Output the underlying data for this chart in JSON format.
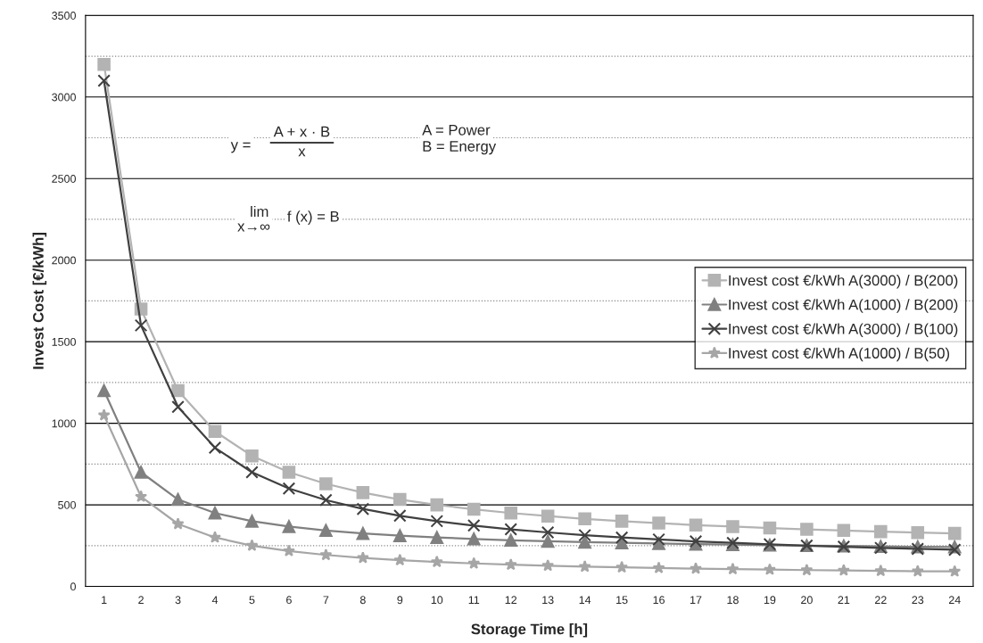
{
  "chart_data": {
    "type": "line",
    "xlabel": "Storage Time [h]",
    "ylabel": "Invest Cost [€/kWh]",
    "categories": [
      "1",
      "2",
      "3",
      "4",
      "5",
      "6",
      "7",
      "8",
      "9",
      "10",
      "11",
      "12",
      "13",
      "14",
      "15",
      "16",
      "17",
      "18",
      "19",
      "20",
      "21",
      "22",
      "23",
      "24"
    ],
    "series": [
      {
        "name": "Invest cost €/kWh A(3000) / B(200)",
        "color": "#b3b3b3",
        "marker": "square",
        "values": [
          3200,
          1700,
          1200,
          950,
          800,
          700,
          629,
          575,
          533,
          500,
          473,
          450,
          431,
          414,
          400,
          388,
          376,
          367,
          358,
          350,
          343,
          336,
          330,
          325
        ]
      },
      {
        "name": "Invest cost €/kWh A(1000) / B(200)",
        "color": "#808080",
        "marker": "triangle",
        "values": [
          1200,
          700,
          533,
          450,
          400,
          367,
          343,
          325,
          311,
          300,
          291,
          283,
          277,
          271,
          267,
          263,
          259,
          256,
          253,
          250,
          248,
          245,
          243,
          242
        ]
      },
      {
        "name": "Invest cost €/kWh A(3000) / B(100)",
        "color": "#404040",
        "marker": "cross",
        "values": [
          3100,
          1600,
          1100,
          850,
          700,
          600,
          529,
          475,
          433,
          400,
          373,
          350,
          331,
          314,
          300,
          288,
          276,
          267,
          258,
          250,
          243,
          236,
          230,
          225
        ]
      },
      {
        "name": "Invest cost €/kWh A(1000) / B(50)",
        "color": "#a6a6a6",
        "marker": "star",
        "values": [
          1050,
          550,
          383,
          300,
          250,
          217,
          193,
          175,
          161,
          150,
          141,
          133,
          127,
          121,
          117,
          113,
          109,
          106,
          103,
          100,
          98,
          95,
          93,
          92
        ]
      }
    ],
    "ylim": [
      0,
      3500
    ],
    "yticks": [
      0,
      {
        "value": 250,
        "label": null
      },
      500,
      {
        "value": 750,
        "label": null
      },
      1000,
      {
        "value": 1250,
        "label": null
      },
      1500,
      {
        "value": 1750,
        "label": null
      },
      2000,
      {
        "value": 2250,
        "label": null
      },
      2500,
      {
        "value": 2750,
        "label": null
      },
      3000,
      {
        "value": 3250,
        "label": null
      },
      3500
    ],
    "grid": "y",
    "legend": "right",
    "line_style": "solid",
    "annotations": [
      "y =",
      "A + x · B",
      "x",
      "A = Power",
      "B = Energy",
      "lim",
      "x→∞",
      "f (x) = B"
    ]
  }
}
